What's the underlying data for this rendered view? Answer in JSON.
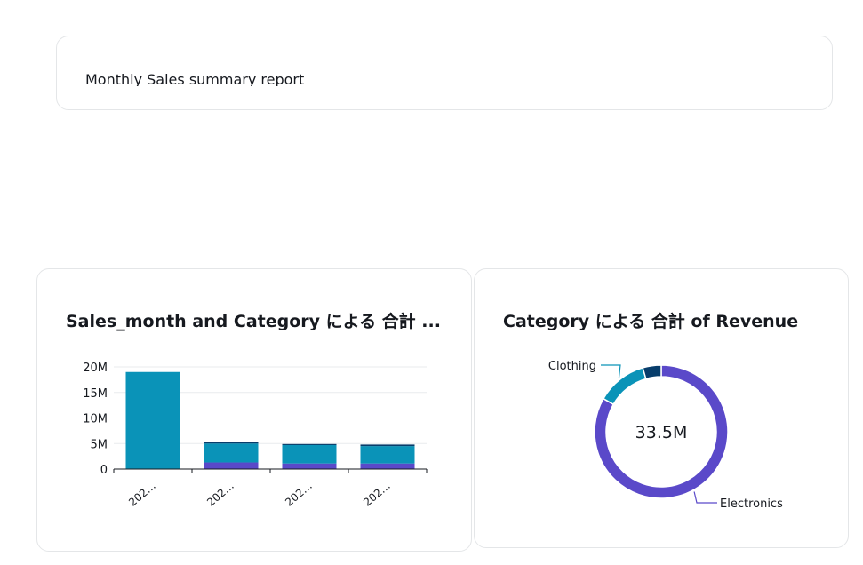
{
  "text_widget": {
    "body": "Monthly Sales summary report"
  },
  "bar_widget": {
    "title": "Sales_month and Category による 合計 ...",
    "chart_data": {
      "type": "bar",
      "stacked": true,
      "categories": [
        "202…",
        "202…",
        "202…",
        "202…"
      ],
      "yticks": [
        "0",
        "5M",
        "10M",
        "15M",
        "20M"
      ],
      "ylim": [
        0,
        20000000
      ],
      "grid": true,
      "series": [
        {
          "color": "#5a49c9",
          "values": [
            0,
            1300000,
            1100000,
            1100000
          ]
        },
        {
          "color": "#0a93b8",
          "values": [
            19000000,
            3700000,
            3600000,
            3400000
          ]
        },
        {
          "color": "#073d6b",
          "values": [
            0,
            300000,
            200000,
            300000
          ]
        }
      ]
    }
  },
  "donut_widget": {
    "title": "Category による 合計 of Revenue",
    "total_label": "33.5M",
    "chart_data": {
      "type": "pie",
      "donut": true,
      "total": "33.5M",
      "slices": [
        {
          "label": "Electronics",
          "value": 27.9,
          "color": "#5a49c9"
        },
        {
          "label": "Clothing",
          "value": 4.1,
          "color": "#0a93b8"
        },
        {
          "label": "",
          "value": 1.5,
          "color": "#073d6b"
        }
      ]
    }
  }
}
